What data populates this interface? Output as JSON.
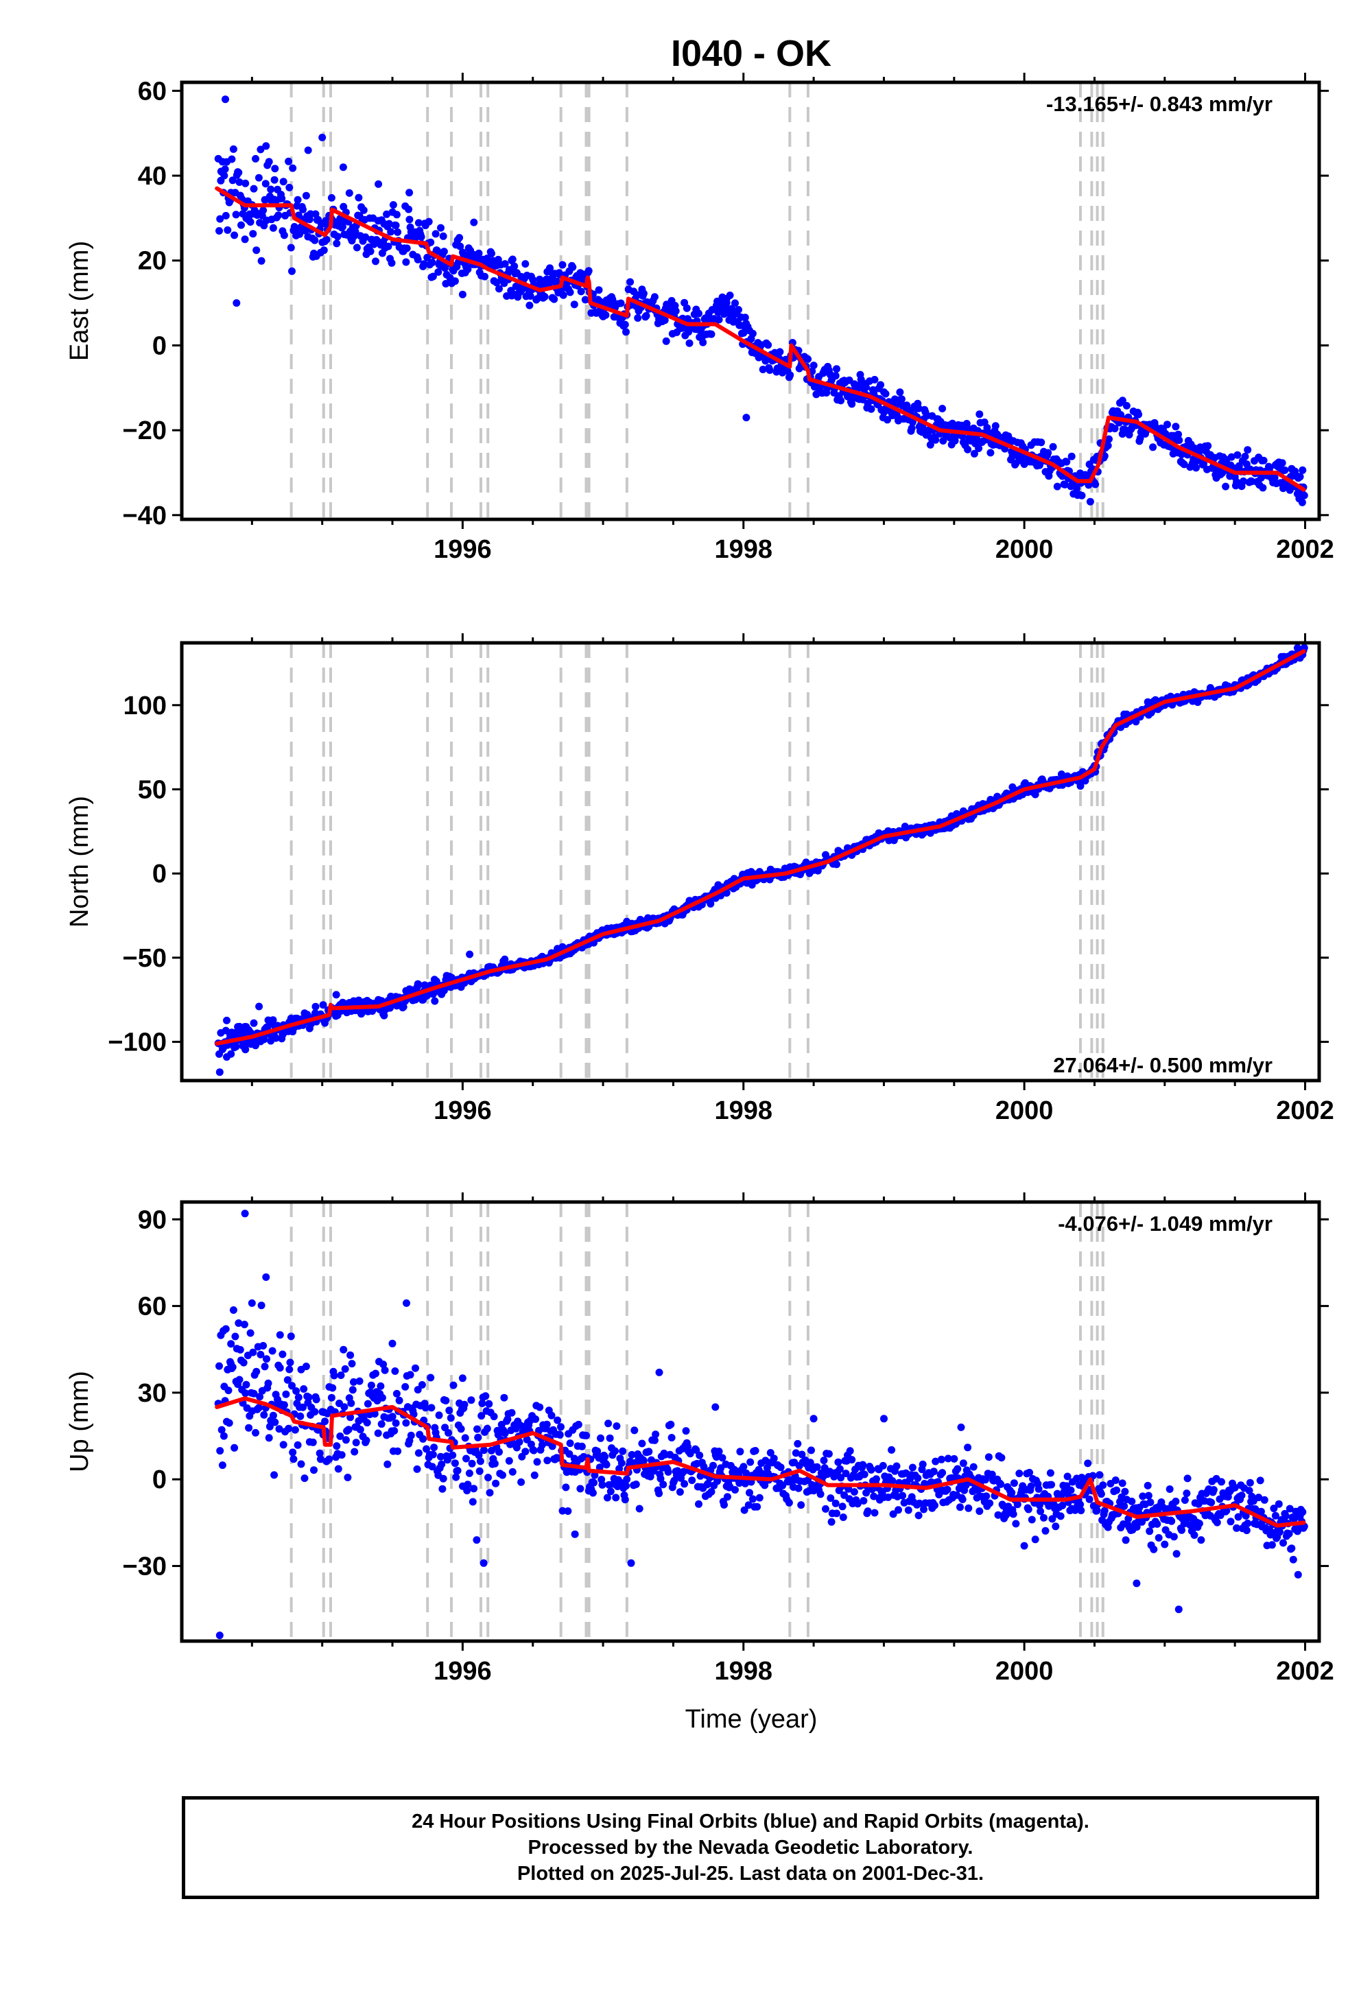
{
  "title": "I040 - OK",
  "x_label": "Time (year)",
  "caption": {
    "line1": "24 Hour Positions Using Final Orbits (blue) and Rapid Orbits (magenta).",
    "line2": "Processed by the Nevada Geodetic Laboratory.",
    "line3": "Plotted on 2025-Jul-25. Last data on 2001-Dec-31."
  },
  "colors": {
    "points": "#0000ff",
    "model": "#ff0000",
    "steps": "#c8c8c8",
    "frame": "#000000"
  },
  "chart_data": [
    {
      "type": "scatter",
      "component": "east",
      "ylabel": "East (mm)",
      "rate_label": "-13.165+/- 0.843 mm/yr",
      "xlim": [
        1994.0,
        2002.1
      ],
      "ylim": [
        -41,
        62
      ],
      "x_ticks": [
        1996,
        1998,
        2000,
        2002
      ],
      "y_ticks": [
        -40,
        -20,
        0,
        20,
        40,
        60
      ],
      "y_tick_labels": [
        "−40",
        "−20",
        "0",
        "20",
        "40",
        "60"
      ],
      "step_epochs": [
        1994.78,
        1995.01,
        1995.06,
        1995.75,
        1995.92,
        1996.13,
        1996.18,
        1996.7,
        1996.88,
        1996.9,
        1997.17,
        1998.33,
        1998.46,
        2000.4,
        2000.48,
        2000.52,
        2000.56
      ],
      "model_knots": [
        [
          1994.25,
          37
        ],
        [
          1994.45,
          33
        ],
        [
          1994.78,
          33
        ],
        [
          1994.8,
          30
        ],
        [
          1995.02,
          26
        ],
        [
          1995.06,
          28
        ],
        [
          1995.07,
          32
        ],
        [
          1995.5,
          25
        ],
        [
          1995.74,
          24
        ],
        [
          1995.76,
          22
        ],
        [
          1995.92,
          19
        ],
        [
          1995.93,
          21
        ],
        [
          1996.13,
          19
        ],
        [
          1996.18,
          18
        ],
        [
          1996.55,
          13
        ],
        [
          1996.7,
          14
        ],
        [
          1996.71,
          16
        ],
        [
          1996.88,
          14
        ],
        [
          1996.89,
          16
        ],
        [
          1996.9,
          15
        ],
        [
          1996.91,
          10
        ],
        [
          1997.17,
          7
        ],
        [
          1997.18,
          11
        ],
        [
          1997.6,
          5
        ],
        [
          1997.8,
          5
        ],
        [
          1998.0,
          1
        ],
        [
          1998.33,
          -5
        ],
        [
          1998.34,
          0
        ],
        [
          1998.46,
          -6
        ],
        [
          1998.47,
          -8
        ],
        [
          1998.9,
          -12
        ],
        [
          1999.4,
          -20
        ],
        [
          1999.7,
          -21
        ],
        [
          2000.2,
          -28
        ],
        [
          2000.38,
          -32
        ],
        [
          2000.47,
          -32
        ],
        [
          2000.53,
          -28
        ],
        [
          2000.6,
          -17
        ],
        [
          2000.8,
          -18
        ],
        [
          2001.1,
          -24
        ],
        [
          2001.5,
          -30
        ],
        [
          2001.8,
          -30
        ],
        [
          2001.99,
          -34
        ]
      ],
      "points": [
        [
          1994.28,
          41
        ],
        [
          1994.31,
          58
        ],
        [
          1994.35,
          36
        ],
        [
          1994.39,
          10
        ],
        [
          1994.45,
          25
        ],
        [
          1994.52,
          31
        ],
        [
          1994.6,
          47
        ],
        [
          1994.66,
          39
        ],
        [
          1994.9,
          46
        ],
        [
          1995.0,
          49
        ],
        [
          1995.15,
          42
        ],
        [
          1995.4,
          38
        ],
        [
          1995.62,
          36
        ],
        [
          1996.0,
          12
        ],
        [
          1996.08,
          29
        ],
        [
          1996.35,
          20
        ],
        [
          1996.62,
          18
        ],
        [
          1997.0,
          8
        ],
        [
          1997.45,
          1
        ],
        [
          1997.88,
          11
        ],
        [
          1998.02,
          -17
        ],
        [
          1998.6,
          -5
        ],
        [
          1999.0,
          -11
        ],
        [
          1999.55,
          -20
        ],
        [
          2000.0,
          -28
        ],
        [
          2000.35,
          -35
        ],
        [
          2000.7,
          -13
        ],
        [
          2001.0,
          -21
        ],
        [
          2001.5,
          -29
        ],
        [
          2001.98,
          -37
        ]
      ]
    },
    {
      "type": "scatter",
      "component": "north",
      "ylabel": "North (mm)",
      "rate_label": "27.064+/- 0.500 mm/yr",
      "xlim": [
        1994.0,
        2002.1
      ],
      "ylim": [
        -123,
        137
      ],
      "x_ticks": [
        1996,
        1998,
        2000,
        2002
      ],
      "y_ticks": [
        -100,
        -50,
        0,
        50,
        100
      ],
      "y_tick_labels": [
        "−100",
        "−50",
        "0",
        "50",
        "100"
      ],
      "step_epochs": [
        1994.78,
        1995.01,
        1995.06,
        1995.75,
        1995.92,
        1996.13,
        1996.18,
        1996.7,
        1996.88,
        1996.9,
        1997.17,
        1998.33,
        1998.46,
        2000.4,
        2000.48,
        2000.52,
        2000.56
      ],
      "model_knots": [
        [
          1994.25,
          -101
        ],
        [
          1994.5,
          -97
        ],
        [
          1994.78,
          -90
        ],
        [
          1995.05,
          -84
        ],
        [
          1995.06,
          -78
        ],
        [
          1995.07,
          -80
        ],
        [
          1995.4,
          -79
        ],
        [
          1995.8,
          -68
        ],
        [
          1996.2,
          -58
        ],
        [
          1996.6,
          -51
        ],
        [
          1997.0,
          -36
        ],
        [
          1997.4,
          -28
        ],
        [
          1997.8,
          -12
        ],
        [
          1998.0,
          -3
        ],
        [
          1998.3,
          0
        ],
        [
          1998.6,
          7
        ],
        [
          1999.0,
          22
        ],
        [
          1999.4,
          28
        ],
        [
          1999.8,
          42
        ],
        [
          2000.0,
          50
        ],
        [
          2000.4,
          57
        ],
        [
          2000.5,
          62
        ],
        [
          2000.55,
          75
        ],
        [
          2000.65,
          88
        ],
        [
          2001.0,
          102
        ],
        [
          2001.5,
          110
        ],
        [
          2001.99,
          132
        ]
      ],
      "points": [
        [
          1994.27,
          -118
        ],
        [
          1994.32,
          -109
        ],
        [
          1994.38,
          -97
        ],
        [
          1994.45,
          -91
        ],
        [
          1994.55,
          -79
        ],
        [
          1994.65,
          -87
        ],
        [
          1994.95,
          -83
        ],
        [
          1995.1,
          -72
        ],
        [
          1995.4,
          -75
        ],
        [
          1995.8,
          -63
        ],
        [
          1996.05,
          -48
        ],
        [
          1996.3,
          -51
        ],
        [
          1996.7,
          -45
        ],
        [
          1997.1,
          -32
        ],
        [
          1997.5,
          -24
        ],
        [
          1998.0,
          -5
        ],
        [
          1998.5,
          2
        ],
        [
          1999.0,
          23
        ],
        [
          1999.5,
          32
        ],
        [
          2000.0,
          53
        ],
        [
          2000.4,
          52
        ],
        [
          2000.6,
          80
        ],
        [
          2001.0,
          100
        ],
        [
          2001.5,
          112
        ],
        [
          2001.95,
          130
        ]
      ]
    },
    {
      "type": "scatter",
      "component": "up",
      "ylabel": "Up (mm)",
      "rate_label": "-4.076+/- 1.049 mm/yr",
      "xlim": [
        1994.0,
        2002.1
      ],
      "ylim": [
        -56,
        96
      ],
      "x_ticks": [
        1996,
        1998,
        2000,
        2002
      ],
      "y_ticks": [
        -30,
        0,
        30,
        60,
        90
      ],
      "y_tick_labels": [
        "−30",
        "0",
        "30",
        "60",
        "90"
      ],
      "step_epochs": [
        1994.78,
        1995.01,
        1995.06,
        1995.75,
        1995.92,
        1996.13,
        1996.18,
        1996.7,
        1996.88,
        1996.9,
        1997.17,
        1998.33,
        1998.46,
        2000.4,
        2000.48,
        2000.52,
        2000.56
      ],
      "model_knots": [
        [
          1994.25,
          25
        ],
        [
          1994.45,
          28
        ],
        [
          1994.6,
          26
        ],
        [
          1994.78,
          22
        ],
        [
          1994.8,
          20
        ],
        [
          1995.01,
          18
        ],
        [
          1995.02,
          12
        ],
        [
          1995.06,
          12
        ],
        [
          1995.07,
          22
        ],
        [
          1995.5,
          25
        ],
        [
          1995.75,
          18
        ],
        [
          1995.76,
          14
        ],
        [
          1995.92,
          13
        ],
        [
          1995.93,
          11
        ],
        [
          1996.2,
          12
        ],
        [
          1996.5,
          16
        ],
        [
          1996.7,
          12
        ],
        [
          1996.71,
          5
        ],
        [
          1996.88,
          4
        ],
        [
          1996.89,
          7
        ],
        [
          1996.9,
          3
        ],
        [
          1997.17,
          2
        ],
        [
          1997.18,
          4
        ],
        [
          1997.5,
          6
        ],
        [
          1997.8,
          1
        ],
        [
          1998.2,
          0
        ],
        [
          1998.4,
          3
        ],
        [
          1998.6,
          -2
        ],
        [
          1999.0,
          -2
        ],
        [
          1999.3,
          -3
        ],
        [
          1999.6,
          0
        ],
        [
          1999.9,
          -7
        ],
        [
          2000.3,
          -7
        ],
        [
          2000.4,
          -6
        ],
        [
          2000.47,
          0
        ],
        [
          2000.52,
          -8
        ],
        [
          2000.8,
          -13
        ],
        [
          2001.2,
          -11
        ],
        [
          2001.5,
          -9
        ],
        [
          2001.8,
          -16
        ],
        [
          2001.99,
          -15
        ]
      ],
      "points": [
        [
          1994.27,
          -54
        ],
        [
          1994.3,
          15
        ],
        [
          1994.35,
          40
        ],
        [
          1994.45,
          92
        ],
        [
          1994.5,
          61
        ],
        [
          1994.6,
          70
        ],
        [
          1994.7,
          50
        ],
        [
          1994.85,
          38
        ],
        [
          1995.05,
          32
        ],
        [
          1995.2,
          43
        ],
        [
          1995.5,
          47
        ],
        [
          1995.6,
          61
        ],
        [
          1996.0,
          35
        ],
        [
          1996.1,
          -21
        ],
        [
          1996.15,
          -29
        ],
        [
          1996.6,
          19
        ],
        [
          1996.75,
          -11
        ],
        [
          1996.8,
          -19
        ],
        [
          1997.2,
          -29
        ],
        [
          1997.4,
          37
        ],
        [
          1997.8,
          25
        ],
        [
          1998.5,
          21
        ],
        [
          1999.0,
          21
        ],
        [
          1999.55,
          18
        ],
        [
          2000.0,
          -23
        ],
        [
          2000.8,
          -36
        ],
        [
          2001.1,
          -45
        ],
        [
          2001.95,
          -33
        ]
      ]
    }
  ]
}
